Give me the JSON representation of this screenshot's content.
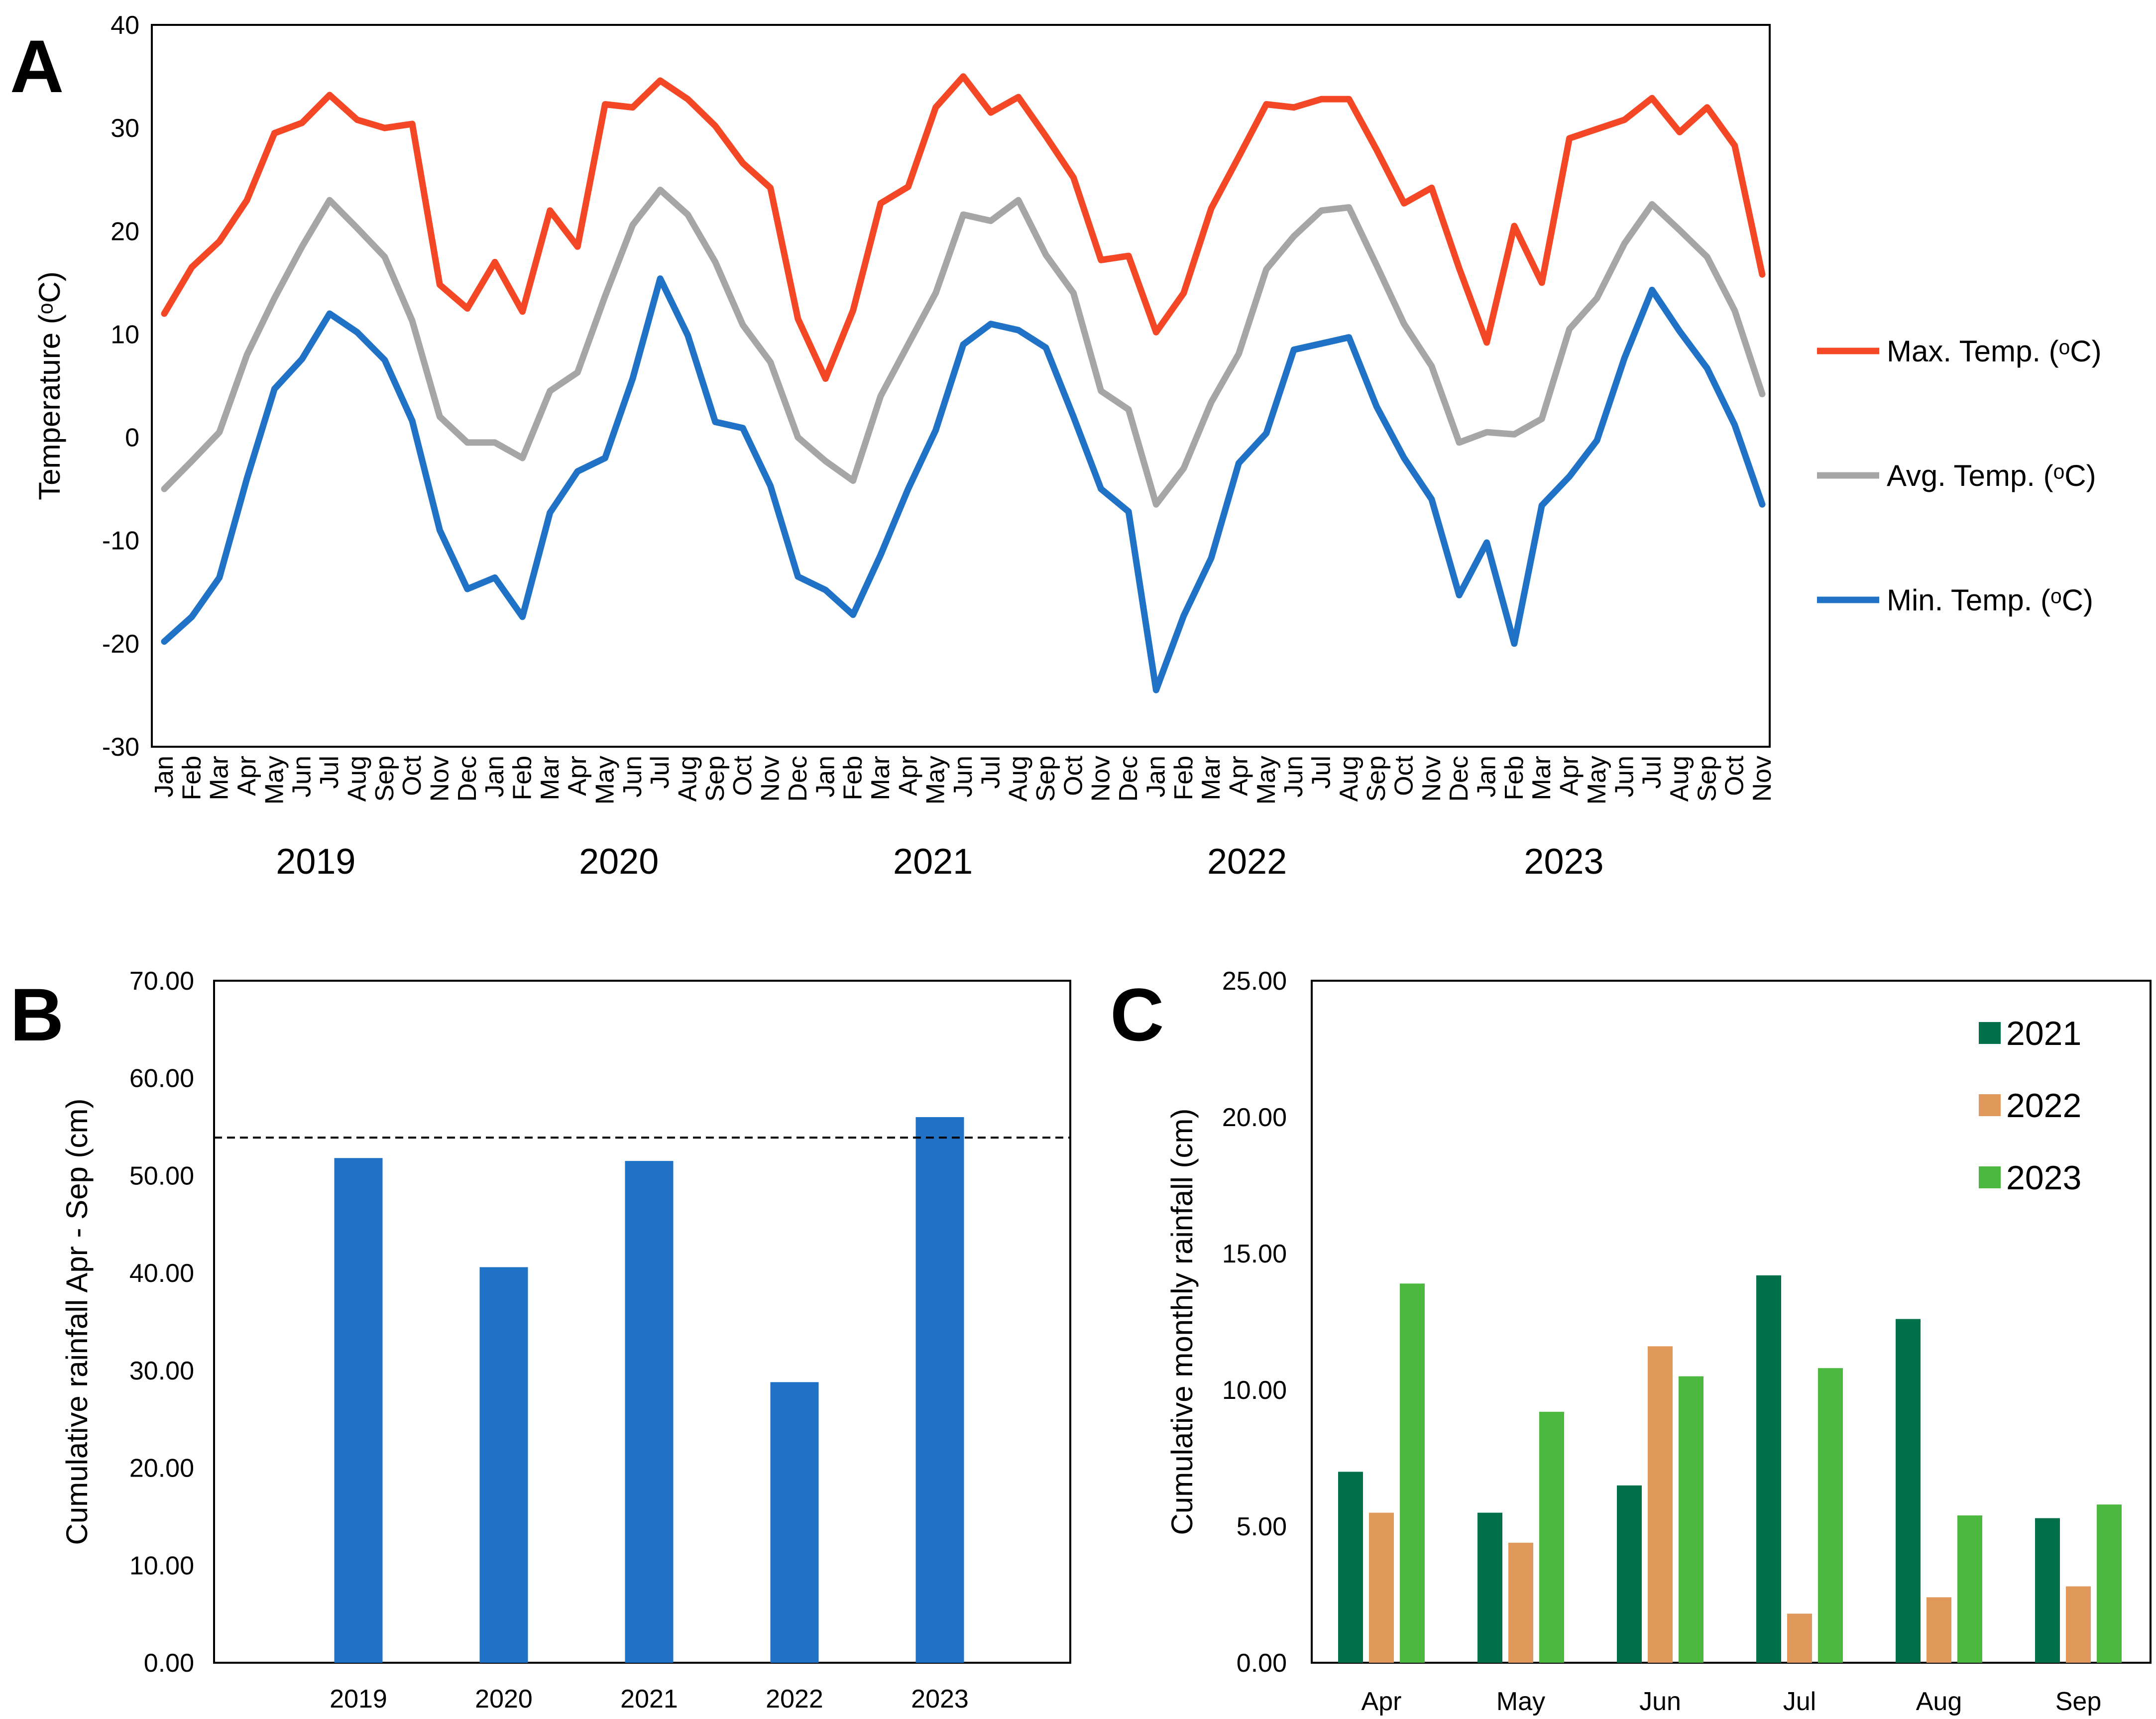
{
  "chart_data": [
    {
      "panel": "A",
      "type": "line",
      "ylabel": "Temperature (ᵒC)",
      "ylim": [
        -30,
        40
      ],
      "yticks": [
        -30,
        -20,
        -10,
        0,
        10,
        20,
        30,
        40
      ],
      "x": [
        "Jan",
        "Feb",
        "Mar",
        "Apr",
        "May",
        "Jun",
        "Jul",
        "Aug",
        "Sep",
        "Oct",
        "Nov",
        "Dec",
        "Jan",
        "Feb",
        "Mar",
        "Apr",
        "May",
        "Jun",
        "Jul",
        "Aug",
        "Sep",
        "Oct",
        "Nov",
        "Dec",
        "Jan",
        "Feb",
        "Mar",
        "Apr",
        "May",
        "Jun",
        "Jul",
        "Aug",
        "Sep",
        "Oct",
        "Nov",
        "Dec",
        "Jan",
        "Feb",
        "Mar",
        "Apr",
        "May",
        "Jun",
        "Jul",
        "Aug",
        "Sep",
        "Oct",
        "Nov",
        "Dec",
        "Jan",
        "Feb",
        "Mar",
        "Apr",
        "May",
        "Jun",
        "Jul",
        "Aug",
        "Sep",
        "Oct",
        "Nov"
      ],
      "years": [
        {
          "label": "2019",
          "center_index": 5.5
        },
        {
          "label": "2020",
          "center_index": 16.5
        },
        {
          "label": "2021",
          "center_index": 27.9
        },
        {
          "label": "2022",
          "center_index": 39.3
        },
        {
          "label": "2023",
          "center_index": 50.8
        }
      ],
      "series": [
        {
          "name": "Max. Temp. (ᵒC)",
          "color": "#F44725",
          "values": [
            12,
            16.5,
            19,
            23,
            29.5,
            30.5,
            33.2,
            30.8,
            30,
            30.4,
            14.8,
            12.5,
            17,
            12.2,
            22,
            18.5,
            32.3,
            32,
            34.6,
            32.8,
            30.2,
            26.6,
            24.2,
            11.5,
            5.7,
            12.3,
            22.7,
            24.3,
            32,
            35,
            31.5,
            33,
            29.2,
            25.2,
            17.2,
            17.6,
            10.2,
            14,
            22.2,
            27.2,
            32.3,
            32,
            32.8,
            32.8,
            27.9,
            22.7,
            24.2,
            16.4,
            9.2,
            20.5,
            15,
            29,
            29.9,
            30.8,
            32.9,
            29.6,
            32,
            28.3,
            15.8
          ]
        },
        {
          "name": "Avg. Temp. (ᵒC)",
          "color": "#A6A6A6",
          "values": [
            -5,
            -2.3,
            0.5,
            8,
            13.5,
            18.5,
            23,
            20.3,
            17.5,
            11.3,
            2,
            -0.5,
            -0.5,
            -2,
            4.5,
            6.3,
            13.7,
            20.6,
            24,
            21.6,
            17,
            10.9,
            7.3,
            0,
            -2.3,
            -4.2,
            4,
            9,
            14,
            21.6,
            21,
            23,
            17.7,
            14,
            4.5,
            2.7,
            -6.5,
            -3,
            3.4,
            8.1,
            16.3,
            19.5,
            22,
            22.3,
            16.7,
            11,
            6.9,
            -0.5,
            0.5,
            0.3,
            1.8,
            10.5,
            13.5,
            18.8,
            22.6,
            20.1,
            17.5,
            12.3,
            4.2
          ]
        },
        {
          "name": "Min. Temp. (ᵒC)",
          "color": "#1F72C6",
          "values": [
            -19.8,
            -17.4,
            -13.6,
            -4,
            4.7,
            7.6,
            12,
            10.2,
            7.5,
            1.6,
            -9,
            -14.7,
            -13.6,
            -17.4,
            -7.3,
            -3.3,
            -2,
            5.7,
            15.4,
            9.9,
            1.5,
            0.9,
            -4.7,
            -13.5,
            -14.8,
            -17.2,
            -11.4,
            -5,
            0.7,
            9,
            11,
            10.4,
            8.7,
            2,
            -5,
            -7.2,
            -24.5,
            -17.3,
            -11.7,
            -2.5,
            0.4,
            8.5,
            9.1,
            9.7,
            3,
            -2,
            -6,
            -15.3,
            -10.2,
            -20,
            -6.6,
            -3.8,
            -0.3,
            7.7,
            14.3,
            10.3,
            6.7,
            1.2,
            -6.5
          ]
        }
      ]
    },
    {
      "panel": "B",
      "type": "bar",
      "ylabel": "Cumulative rainfall  Apr - Sep (cm)",
      "ylim": [
        0,
        70
      ],
      "yticks": [
        "0.00",
        "10.00",
        "20.00",
        "30.00",
        "40.00",
        "50.00",
        "60.00",
        "70.00"
      ],
      "categories": [
        "2019",
        "2020",
        "2021",
        "2022",
        "2023"
      ],
      "values": [
        51.8,
        40.6,
        51.5,
        28.8,
        56.0
      ],
      "color": "#1F72C6",
      "reference_line": 53.9
    },
    {
      "panel": "C",
      "type": "bar",
      "ylabel": "Cumulative monthly rainfall (cm)",
      "ylim": [
        0,
        25
      ],
      "yticks": [
        "0.00",
        "5.00",
        "10.00",
        "15.00",
        "20.00",
        "25.00"
      ],
      "categories": [
        "Apr",
        "May",
        "Jun",
        "Jul",
        "Aug",
        "Sep"
      ],
      "series": [
        {
          "name": "2021",
          "color": "#00704A",
          "values": [
            7.0,
            5.5,
            6.5,
            14.2,
            12.6,
            5.3
          ]
        },
        {
          "name": "2022",
          "color": "#E0995A",
          "values": [
            5.5,
            4.4,
            11.6,
            1.8,
            2.4,
            2.8
          ]
        },
        {
          "name": "2023",
          "color": "#4DB840",
          "values": [
            13.9,
            9.2,
            10.5,
            10.8,
            5.4,
            5.8
          ]
        }
      ]
    }
  ],
  "panel_labels": {
    "a": "A",
    "b": "B",
    "c": "C"
  }
}
